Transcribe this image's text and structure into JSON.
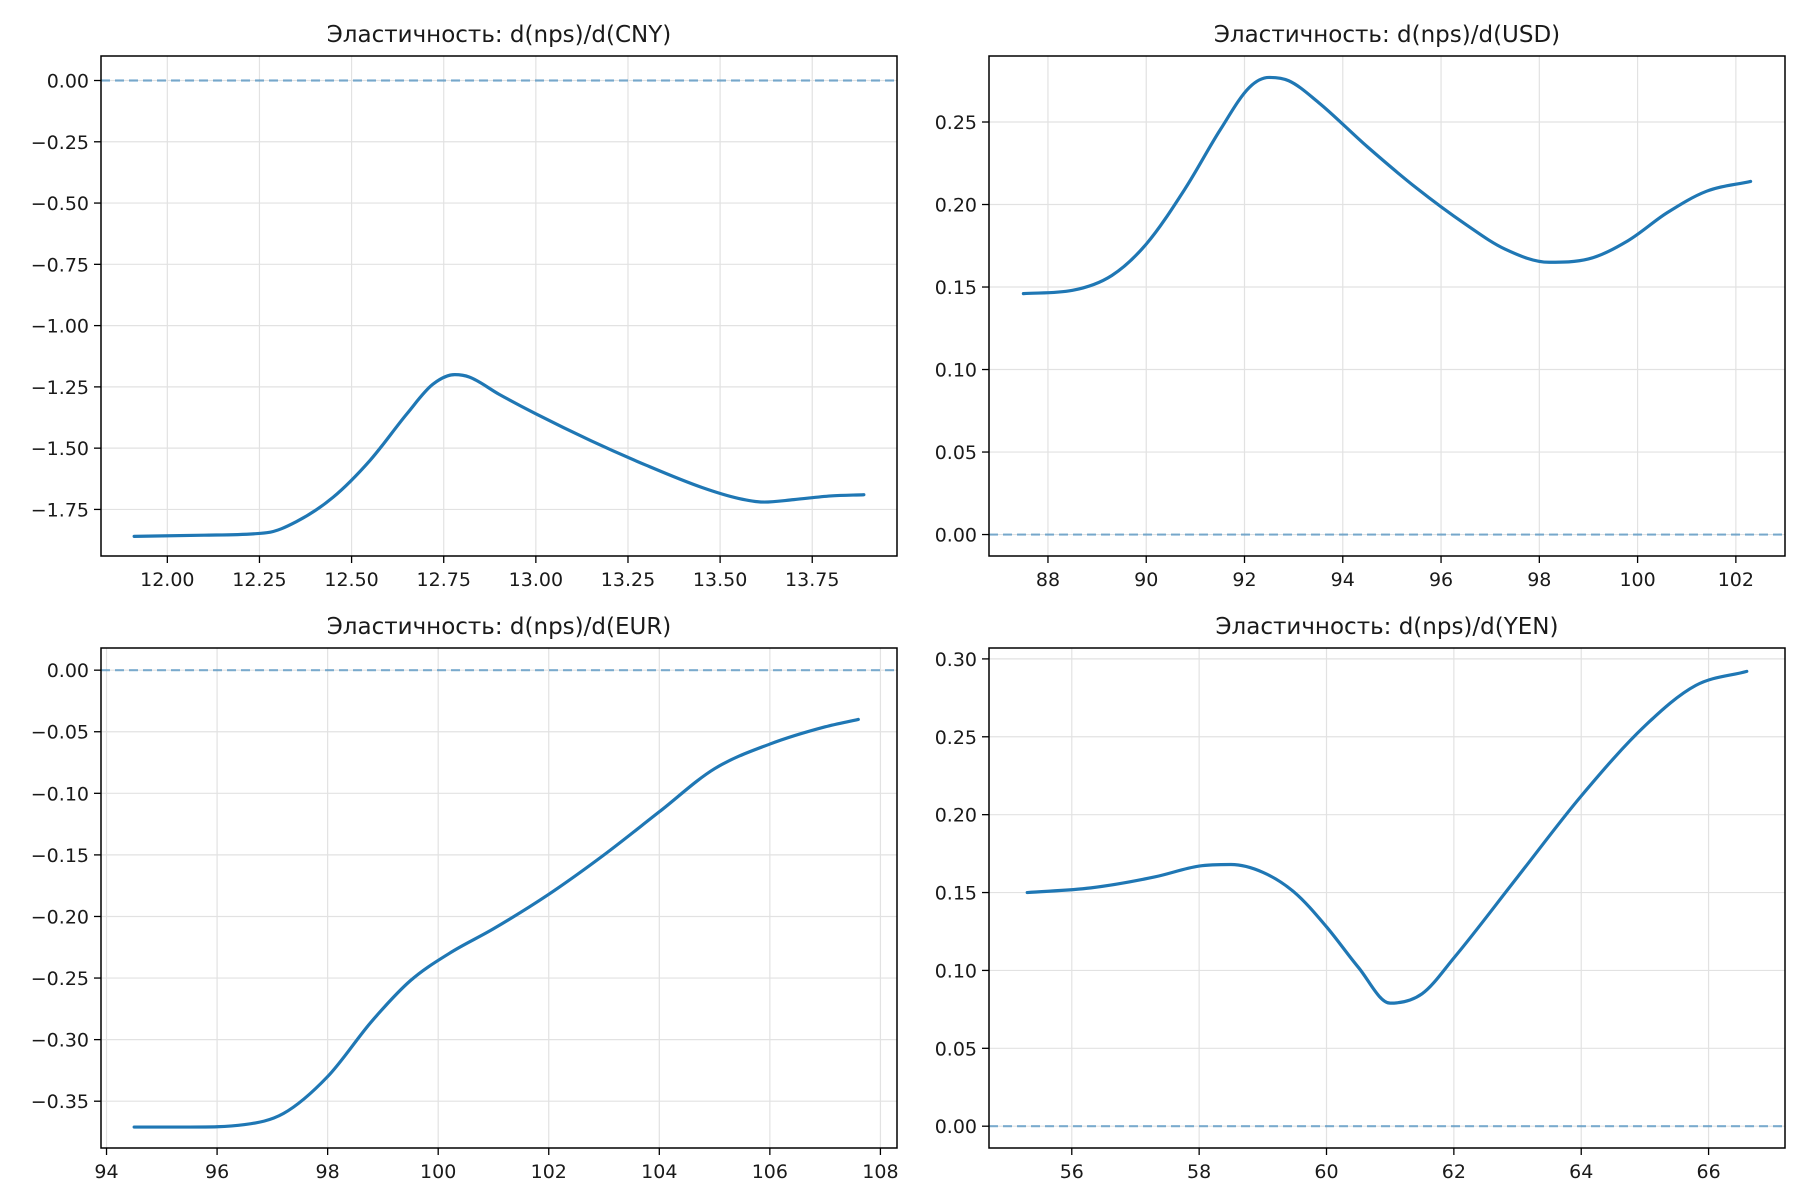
{
  "chart_data": [
    {
      "type": "line",
      "title": "Эластичность: d(nps)/d(CNY)",
      "xlim": [
        11.82,
        13.98
      ],
      "ylim": [
        -1.94,
        0.1
      ],
      "xticks": [
        12.0,
        12.25,
        12.5,
        12.75,
        13.0,
        13.25,
        13.5,
        13.75
      ],
      "xtick_labels": [
        "12.00",
        "12.25",
        "12.50",
        "12.75",
        "13.00",
        "13.25",
        "13.50",
        "13.75"
      ],
      "yticks": [
        0.0,
        -0.25,
        -0.5,
        -0.75,
        -1.0,
        -1.25,
        -1.5,
        -1.75
      ],
      "ytick_labels": [
        "0.00",
        "−0.25",
        "−0.50",
        "−0.75",
        "−1.00",
        "−1.25",
        "−1.50",
        "−1.75"
      ],
      "reference_line": 0,
      "grid": true,
      "x": [
        11.91,
        12.1,
        12.27,
        12.35,
        12.45,
        12.55,
        12.65,
        12.72,
        12.78,
        12.82,
        12.9,
        13.0,
        13.15,
        13.3,
        13.45,
        13.55,
        13.62,
        13.7,
        13.8,
        13.89
      ],
      "y": [
        -1.86,
        -1.855,
        -1.845,
        -1.8,
        -1.7,
        -1.55,
        -1.36,
        -1.24,
        -1.2,
        -1.21,
        -1.28,
        -1.36,
        -1.47,
        -1.57,
        -1.66,
        -1.705,
        -1.72,
        -1.71,
        -1.695,
        -1.69
      ]
    },
    {
      "type": "line",
      "title": "Эластичность: d(nps)/d(USD)",
      "xlim": [
        86.8,
        103.0
      ],
      "ylim": [
        -0.013,
        0.29
      ],
      "xticks": [
        88,
        90,
        92,
        94,
        96,
        98,
        100,
        102
      ],
      "xtick_labels": [
        "88",
        "90",
        "92",
        "94",
        "96",
        "98",
        "100",
        "102"
      ],
      "yticks": [
        0.0,
        0.05,
        0.1,
        0.15,
        0.2,
        0.25
      ],
      "ytick_labels": [
        "0.00",
        "0.05",
        "0.10",
        "0.15",
        "0.20",
        "0.25"
      ],
      "reference_line": 0,
      "grid": true,
      "x": [
        87.5,
        88.5,
        89.3,
        90.0,
        90.8,
        91.5,
        92.1,
        92.5,
        92.9,
        93.5,
        94.5,
        95.5,
        96.5,
        97.3,
        98.2,
        99.0,
        99.8,
        100.6,
        101.4,
        102.3
      ],
      "y": [
        0.146,
        0.148,
        0.157,
        0.176,
        0.21,
        0.245,
        0.271,
        0.277,
        0.275,
        0.262,
        0.235,
        0.21,
        0.188,
        0.173,
        0.165,
        0.167,
        0.178,
        0.195,
        0.208,
        0.214
      ]
    },
    {
      "type": "line",
      "title": "Эластичность: d(nps)/d(EUR)",
      "xlim": [
        93.9,
        108.3
      ],
      "ylim": [
        -0.388,
        0.018
      ],
      "xticks": [
        94,
        96,
        98,
        100,
        102,
        104,
        106,
        108
      ],
      "xtick_labels": [
        "94",
        "96",
        "98",
        "100",
        "102",
        "104",
        "106",
        "108"
      ],
      "yticks": [
        0.0,
        -0.05,
        -0.1,
        -0.15,
        -0.2,
        -0.25,
        -0.3,
        -0.35
      ],
      "ytick_labels": [
        "0.00",
        "−0.05",
        "−0.10",
        "−0.15",
        "−0.20",
        "−0.25",
        "−0.30",
        "−0.35"
      ],
      "reference_line": 0,
      "grid": true,
      "x": [
        94.5,
        95.5,
        96.5,
        97.2,
        98.0,
        98.8,
        99.5,
        100.2,
        101.0,
        102.0,
        103.0,
        104.0,
        105.0,
        106.0,
        107.0,
        107.6
      ],
      "y": [
        -0.371,
        -0.371,
        -0.369,
        -0.36,
        -0.33,
        -0.285,
        -0.252,
        -0.23,
        -0.21,
        -0.182,
        -0.15,
        -0.115,
        -0.08,
        -0.06,
        -0.046,
        -0.04
      ]
    },
    {
      "type": "line",
      "title": "Эластичность: d(nps)/d(YEN)",
      "xlim": [
        54.7,
        67.2
      ],
      "ylim": [
        -0.014,
        0.307
      ],
      "xticks": [
        56,
        58,
        60,
        62,
        64,
        66
      ],
      "xtick_labels": [
        "56",
        "58",
        "60",
        "62",
        "64",
        "66"
      ],
      "yticks": [
        0.0,
        0.05,
        0.1,
        0.15,
        0.2,
        0.25,
        0.3
      ],
      "ytick_labels": [
        "0.00",
        "0.05",
        "0.10",
        "0.15",
        "0.20",
        "0.25",
        "0.30"
      ],
      "reference_line": 0,
      "grid": true,
      "x": [
        55.3,
        56.3,
        57.3,
        58.0,
        58.5,
        59.0,
        59.5,
        60.0,
        60.5,
        61.0,
        61.5,
        62.0,
        63.0,
        64.0,
        65.0,
        65.8,
        66.6
      ],
      "y": [
        0.15,
        0.153,
        0.16,
        0.167,
        0.168,
        0.163,
        0.15,
        0.128,
        0.102,
        0.079,
        0.085,
        0.108,
        0.16,
        0.212,
        0.257,
        0.283,
        0.292
      ]
    }
  ]
}
